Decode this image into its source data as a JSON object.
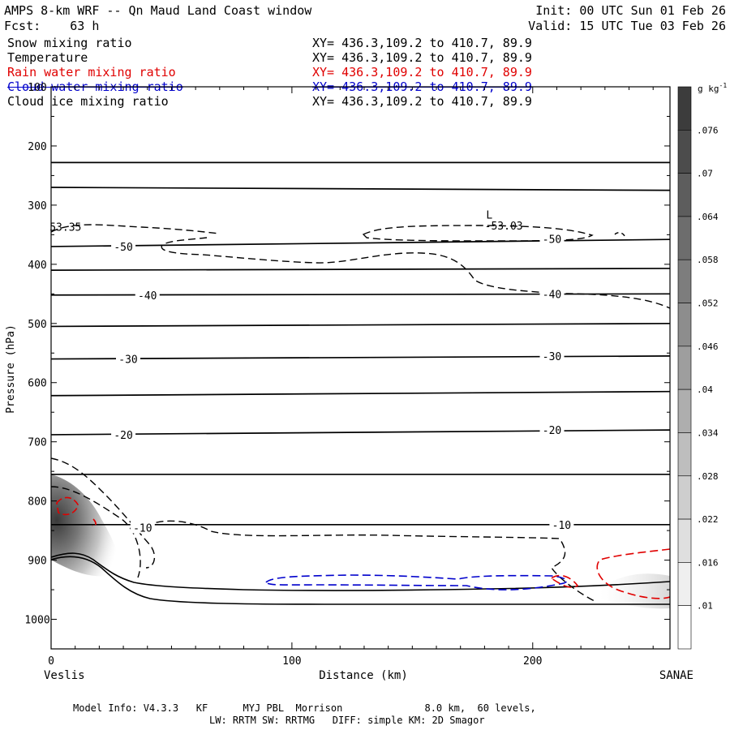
{
  "header": {
    "title": "AMPS 8-km WRF -- Qn Maud Land Coast window",
    "init": "Init: 00 UTC Sun 01 Feb 26",
    "fcst": "Fcst:    63 h",
    "valid": "Valid: 15 UTC Tue 03 Feb 26"
  },
  "fields": [
    {
      "name": "Snow mixing ratio",
      "xy": "XY= 436.3,109.2 to 410.7, 89.9",
      "color": "#000000"
    },
    {
      "name": "Temperature",
      "xy": "XY= 436.3,109.2 to 410.7, 89.9",
      "color": "#000000"
    },
    {
      "name": "Rain water mixing ratio",
      "xy": "XY= 436.3,109.2 to 410.7, 89.9",
      "color": "#e00000"
    },
    {
      "name": "Cloud water mixing ratio",
      "xy": "XY= 436.3,109.2 to 410.7, 89.9",
      "color": "#0000cc"
    },
    {
      "name": "Cloud ice mixing ratio",
      "xy": "XY= 436.3,109.2 to 410.7, 89.9",
      "color": "#000000"
    }
  ],
  "chart_data": {
    "type": "cross-section",
    "xlabel": "Distance (km)",
    "ylabel": "Pressure (hPa)",
    "xlim": [
      0,
      257
    ],
    "ylim": [
      1050,
      100
    ],
    "x_ticks": [
      0,
      100,
      200
    ],
    "y_ticks": [
      100,
      200,
      300,
      400,
      500,
      600,
      700,
      800,
      900,
      1000
    ],
    "left_endpoint": "Veslis",
    "right_endpoint": "SANAE",
    "colorbar": {
      "unit_base": "g kg",
      "unit_exp": "-1",
      "labels": [
        ".076",
        ".07",
        ".064",
        ".058",
        ".052",
        ".046",
        ".04",
        ".034",
        ".028",
        ".022",
        ".016",
        ".01"
      ]
    },
    "isotherms": [
      {
        "pressure_left": 228,
        "pressure_right": 228
      },
      {
        "pressure_left": 270,
        "pressure_right": 275
      },
      {
        "pressure_left": 370,
        "pressure_right": 358
      },
      {
        "pressure_left": 410,
        "pressure_right": 407
      },
      {
        "pressure_left": 452,
        "pressure_right": 450
      },
      {
        "pressure_left": 505,
        "pressure_right": 500
      },
      {
        "pressure_left": 560,
        "pressure_right": 555
      },
      {
        "pressure_left": 622,
        "pressure_right": 615
      },
      {
        "pressure_left": 688,
        "pressure_right": 680
      },
      {
        "pressure_left": 755,
        "pressure_right": 755
      },
      {
        "pressure_left": 840,
        "pressure_right": 840
      }
    ],
    "contour_labels": [
      {
        "text": "-50",
        "x": 30,
        "p": 370
      },
      {
        "text": "-50",
        "x": 208,
        "p": 357
      },
      {
        "text": "-40",
        "x": 40,
        "p": 452
      },
      {
        "text": "-40",
        "x": 208,
        "p": 450
      },
      {
        "text": "-30",
        "x": 32,
        "p": 560
      },
      {
        "text": "-30",
        "x": 208,
        "p": 555
      },
      {
        "text": "-20",
        "x": 30,
        "p": 688
      },
      {
        "text": "-20",
        "x": 208,
        "p": 680
      },
      {
        "text": "-10",
        "x": 38,
        "p": 845
      },
      {
        "text": "-10",
        "x": 212,
        "p": 840
      }
    ],
    "annotations": [
      {
        "text": "53.35",
        "x": 6,
        "p": 338
      },
      {
        "text": "L",
        "x": 182,
        "p": 317
      },
      {
        "text": "-53.03",
        "x": 188,
        "p": 336
      }
    ]
  },
  "footer": {
    "line1": "Model Info: V4.3.3   KF      MYJ PBL  Morrison              8.0 km,  60 levels,",
    "line2": "LW: RRTM SW: RRTMG   DIFF: simple KM: 2D Smagor"
  }
}
